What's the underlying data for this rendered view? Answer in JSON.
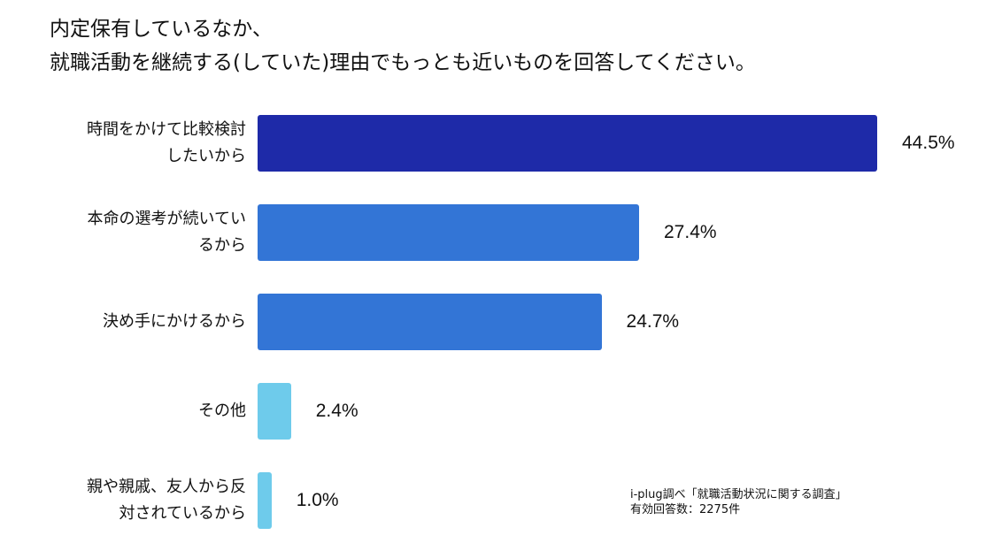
{
  "chart_data": {
    "type": "bar",
    "orientation": "horizontal",
    "title_lines": [
      "内定保有しているなか、",
      "就職活動を継続する(していた)理由でもっとも近いものを回答してください。"
    ],
    "categories": [
      [
        "時間をかけて比較検討",
        "したいから"
      ],
      [
        "本命の選考が続いてい",
        "るから"
      ],
      [
        "決め手にかけるから"
      ],
      [
        "その他"
      ],
      [
        "親や親戚、友人から反",
        "対されているから"
      ]
    ],
    "values": [
      44.5,
      27.4,
      24.7,
      2.4,
      1.0
    ],
    "value_labels": [
      "44.5%",
      "27.4%",
      "24.7%",
      "2.4%",
      "1.0%"
    ],
    "bar_colors": [
      "#1e2aa8",
      "#3375d6",
      "#3375d6",
      "#6ecbeb",
      "#6ecbeb"
    ],
    "xlim": [
      0,
      44.5
    ],
    "xlabel": "",
    "ylabel": "",
    "grid": false,
    "legend": "none"
  },
  "source": {
    "line1": "i-plug調べ「就職活動状況に関する調査」",
    "line2": "有効回答数：2275件"
  }
}
